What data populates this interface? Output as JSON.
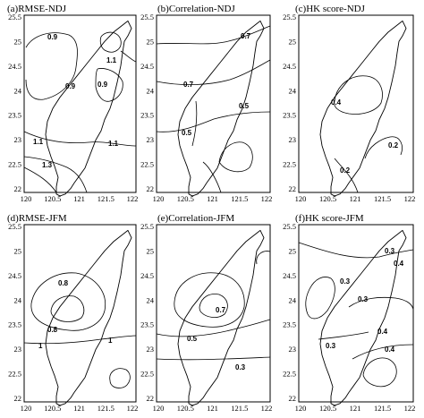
{
  "panels": [
    {
      "title": "(a)RMSE-NDJ",
      "labels": [
        "0.9",
        "1.1",
        "0.9",
        "0.9",
        "1.1",
        "1.1",
        "1.3"
      ]
    },
    {
      "title": "(b)Correlation-NDJ",
      "labels": [
        "0.7",
        "0.7",
        "0.5",
        "0.5"
      ]
    },
    {
      "title": "(c)HK score-NDJ",
      "labels": [
        "0.4",
        "0.2",
        "0.2"
      ]
    },
    {
      "title": "(d)RMSE-JFM",
      "labels": [
        "0.8",
        "0.8",
        "1",
        "1"
      ]
    },
    {
      "title": "(e)Correlation-JFM",
      "labels": [
        "0.7",
        "0.5",
        "0.3"
      ]
    },
    {
      "title": "(f)HK score-JFM",
      "labels": [
        "0.3",
        "0.4",
        "0.3",
        "0.3",
        "0.4",
        "0.4",
        "0.3"
      ]
    }
  ],
  "y_ticks": [
    "25.5",
    "25",
    "24.5",
    "24",
    "23.5",
    "23",
    "22.5",
    "22"
  ],
  "x_ticks": [
    "120",
    "120.5",
    "121",
    "121.5",
    "122"
  ]
}
